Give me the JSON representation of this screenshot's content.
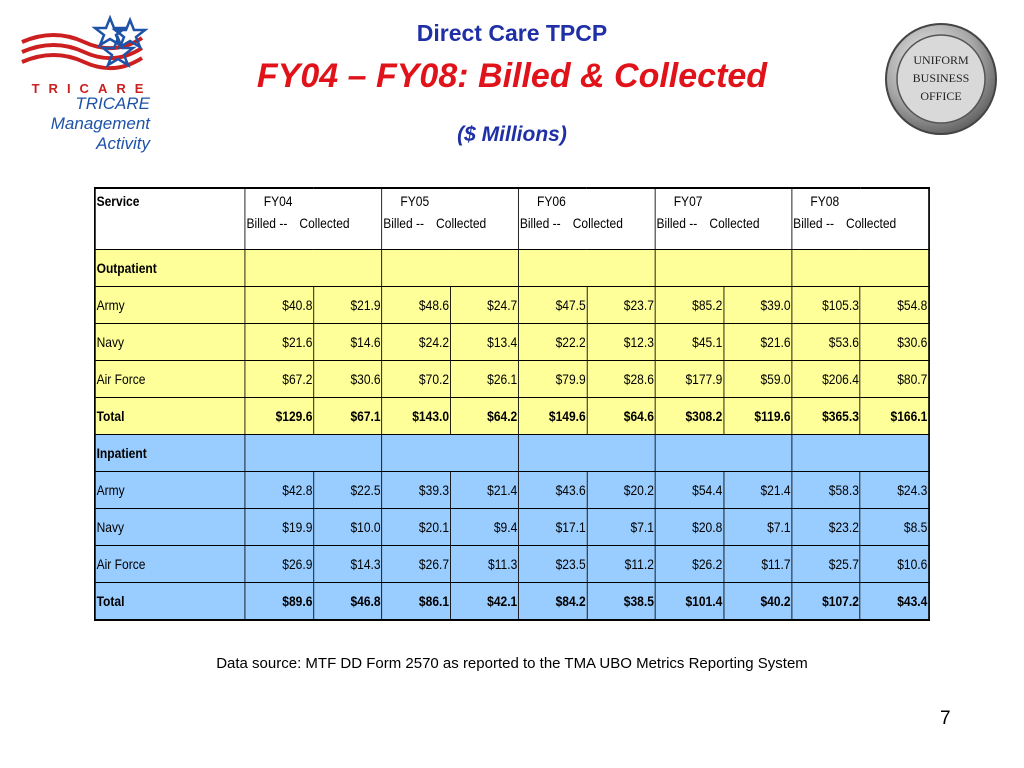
{
  "header": {
    "title_line1": "Direct Care TPCP",
    "title_line2": "FY04 – FY08: Billed & Collected",
    "title_line3": "($ Millions)"
  },
  "logo_left": {
    "word": "TRICARE",
    "lines": [
      "TRICARE",
      "Management",
      "Activity"
    ],
    "colors": {
      "red": "#cc1f1f",
      "blue": "#1e53a8"
    }
  },
  "logo_right": {
    "text": [
      "UNIFORM",
      "BUSINESS",
      "OFFICE"
    ]
  },
  "table": {
    "service_header": "Service",
    "years": [
      "FY04",
      "FY05",
      "FY06",
      "FY07",
      "FY08"
    ],
    "billed_label": "Billed --",
    "collected_label": "Collected",
    "sections": [
      {
        "name": "Outpatient",
        "color": "#ffff99",
        "rows": [
          {
            "label": "Army",
            "values": [
              "$40.8",
              "$21.9",
              "$48.6",
              "$24.7",
              "$47.5",
              "$23.7",
              "$85.2",
              "$39.0",
              "$105.3",
              "$54.8"
            ]
          },
          {
            "label": "Navy",
            "values": [
              "$21.6",
              "$14.6",
              "$24.2",
              "$13.4",
              "$22.2",
              "$12.3",
              "$45.1",
              "$21.6",
              "$53.6",
              "$30.6"
            ]
          },
          {
            "label": "Air Force",
            "values": [
              "$67.2",
              "$30.6",
              "$70.2",
              "$26.1",
              "$79.9",
              "$28.6",
              "$177.9",
              "$59.0",
              "$206.4",
              "$80.7"
            ]
          },
          {
            "label": "Total",
            "values": [
              "$129.6",
              "$67.1",
              "$143.0",
              "$64.2",
              "$149.6",
              "$64.6",
              "$308.2",
              "$119.6",
              "$365.3",
              "$166.1"
            ]
          }
        ]
      },
      {
        "name": "Inpatient",
        "color": "#99ccff",
        "rows": [
          {
            "label": "Army",
            "values": [
              "$42.8",
              "$22.5",
              "$39.3",
              "$21.4",
              "$43.6",
              "$20.2",
              "$54.4",
              "$21.4",
              "$58.3",
              "$24.3"
            ]
          },
          {
            "label": "Navy",
            "values": [
              "$19.9",
              "$10.0",
              "$20.1",
              "$9.4",
              "$17.1",
              "$7.1",
              "$20.8",
              "$7.1",
              "$23.2",
              "$8.5"
            ]
          },
          {
            "label": "Air Force",
            "values": [
              "$26.9",
              "$14.3",
              "$26.7",
              "$11.3",
              "$23.5",
              "$11.2",
              "$26.2",
              "$11.7",
              "$25.7",
              "$10.6"
            ]
          },
          {
            "label": "Total",
            "values": [
              "$89.6",
              "$46.8",
              "$86.1",
              "$42.1",
              "$84.2",
              "$38.5",
              "$101.4",
              "$40.2",
              "$107.2",
              "$43.4"
            ]
          }
        ]
      }
    ]
  },
  "footer": {
    "source": "Data source: MTF DD Form 2570 as reported to the TMA UBO Metrics Reporting System",
    "page_number": "7"
  }
}
